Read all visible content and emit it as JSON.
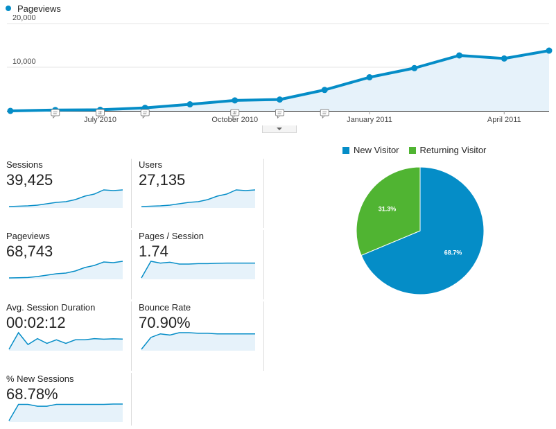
{
  "colors": {
    "accent": "#058dc7",
    "returning": "#50b432",
    "area": "#e6f2fa",
    "grid": "#e5e5e5"
  },
  "overview": {
    "legend_label": "Pageviews",
    "y_ticks": [
      "20,000",
      "10,000"
    ],
    "x_labels": [
      "July 2010",
      "October 2010",
      "January 2011",
      "April 2011"
    ],
    "expand_icon": "chevron-down-icon",
    "annotation_icon": "comment-icon"
  },
  "chart_data": [
    {
      "type": "line",
      "series": [
        {
          "name": "Pageviews",
          "x": [
            "2010-05",
            "2010-06",
            "2010-07",
            "2010-08",
            "2010-09",
            "2010-10",
            "2010-11",
            "2010-12",
            "2011-01",
            "2011-02",
            "2011-03",
            "2011-04",
            "2011-05"
          ],
          "values": [
            0,
            200,
            250,
            700,
            1500,
            2400,
            2600,
            4800,
            7700,
            9800,
            12700,
            12000,
            13800
          ]
        }
      ],
      "ylim": [
        0,
        20000
      ],
      "y_ticks": [
        10000,
        20000
      ],
      "x_tick_labels": [
        "July 2010",
        "October 2010",
        "January 2011",
        "April 2011"
      ],
      "annotations_at_points": [
        1,
        2,
        3,
        5,
        6,
        7
      ],
      "grid": true
    },
    {
      "type": "pie",
      "labels": [
        "New Visitor",
        "Returning Visitor"
      ],
      "values": [
        68.7,
        31.3
      ],
      "data_labels": [
        "68.7%",
        "31.3%"
      ],
      "colors": [
        "#058dc7",
        "#50b432"
      ],
      "legend": "top"
    }
  ],
  "metrics": [
    {
      "label": "Sessions",
      "value": "39,425",
      "spark": [
        0,
        0.5,
        1,
        2,
        4,
        6,
        7,
        10,
        15,
        18,
        24,
        23,
        24
      ]
    },
    {
      "label": "Users",
      "value": "27,135",
      "spark": [
        0,
        0.5,
        1,
        2,
        4,
        6,
        7,
        10,
        15,
        18,
        24,
        23,
        24
      ]
    },
    {
      "label": "Pageviews",
      "value": "68,743",
      "spark": [
        0,
        0.3,
        0.6,
        2,
        4,
        6,
        7,
        10,
        15,
        18,
        23,
        22,
        24
      ]
    },
    {
      "label": "Pages / Session",
      "value": "1.74",
      "spark": [
        0,
        18,
        16,
        17,
        15,
        15,
        15.5,
        15.5,
        15.8,
        16,
        16,
        16,
        16
      ]
    },
    {
      "label": "Avg. Session Duration",
      "value": "00:02:12",
      "spark": [
        0,
        14,
        4,
        9,
        5,
        8,
        5,
        8,
        8,
        9,
        8.5,
        8.8,
        8.6
      ]
    },
    {
      "label": "Bounce Rate",
      "value": "70.90%",
      "spark": [
        0,
        10,
        13,
        12,
        14,
        14,
        13.5,
        13.5,
        13,
        13,
        13,
        13,
        13
      ]
    },
    {
      "label": "% New Sessions",
      "value": "68.78%",
      "spark": [
        0,
        9,
        9,
        8,
        8,
        9,
        9,
        9,
        9,
        9,
        9,
        9.2,
        9.2
      ]
    }
  ]
}
